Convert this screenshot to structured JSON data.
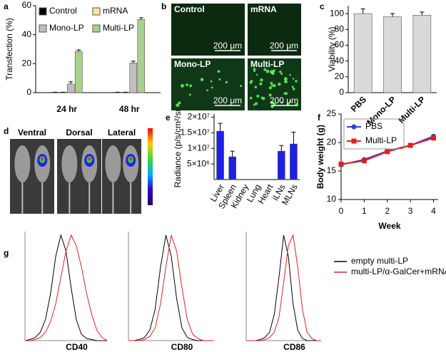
{
  "chart_data": [
    {
      "type": "bar",
      "panel": "a",
      "ylabel": "Transfection (%)",
      "categories": [
        "24 hr",
        "48 hr"
      ],
      "series": [
        {
          "name": "Control",
          "color": "#000000",
          "values": [
            0.3,
            0.3
          ],
          "errors": [
            0,
            0
          ]
        },
        {
          "name": "mRNA",
          "color": "#ffe699",
          "values": [
            0.3,
            0.3
          ],
          "errors": [
            0,
            0
          ]
        },
        {
          "name": "Mono-LP",
          "color": "#bfbfbf",
          "values": [
            6,
            20.5
          ],
          "errors": [
            1.5,
            1.2
          ]
        },
        {
          "name": "Multi-LP",
          "color": "#a9d18e",
          "values": [
            28.5,
            50.5
          ],
          "errors": [
            1,
            1.2
          ]
        }
      ],
      "ylim": [
        0,
        60
      ],
      "yticks": [
        0,
        20,
        40,
        60
      ]
    },
    {
      "type": "bar",
      "panel": "c",
      "ylabel": "Viability (%)",
      "categories": [
        "PBS",
        "Mono-LP",
        "Multi-LP"
      ],
      "series": [
        {
          "color": "#d9d9d9",
          "values": [
            100,
            96,
            98
          ],
          "errors": [
            6,
            4,
            4
          ]
        }
      ],
      "ylim": [
        0,
        110
      ],
      "yticks": [
        0,
        20,
        40,
        60,
        80,
        100
      ]
    },
    {
      "type": "bar",
      "panel": "e",
      "ylabel": "Radiance (p/s/cm²/sr)",
      "categories": [
        "Liver",
        "Spleen",
        "Kidney",
        "Lung",
        "Heart",
        "iLNs",
        "MLNs"
      ],
      "series": [
        {
          "color": "#1f1fe6",
          "values": [
            15500000,
            7300000,
            0,
            0,
            0,
            9100000,
            11400000
          ],
          "errors": [
            2500000,
            1800000,
            0,
            0,
            0,
            1800000,
            3800000
          ]
        }
      ],
      "ylim": [
        0,
        21000000
      ],
      "yticks": [
        {
          "value": 5000000,
          "label": "5×10⁶"
        },
        {
          "value": 10000000,
          "label": "1×10⁷"
        },
        {
          "value": 15000000,
          "label": "1.5×10⁷"
        },
        {
          "value": 20000000,
          "label": "2×10⁷"
        }
      ]
    },
    {
      "type": "line",
      "panel": "f",
      "xlabel": "Week",
      "ylabel": "Body weight (g)",
      "x": [
        0,
        1,
        2,
        3,
        4
      ],
      "series": [
        {
          "name": "PBS",
          "color": "#2c3fd6",
          "values": [
            16.1,
            17.0,
            18.5,
            19.5,
            21.1
          ],
          "errors": [
            0.3,
            0.3,
            0.3,
            0.3,
            0.4
          ]
        },
        {
          "name": "Multi-LP",
          "color": "#e02020",
          "values": [
            16.2,
            16.8,
            18.4,
            19.5,
            20.8
          ],
          "errors": [
            0.3,
            0.3,
            0.3,
            0.3,
            0.5
          ]
        }
      ],
      "xlim": [
        0,
        4.2
      ],
      "xticks": [
        0,
        1,
        2,
        3,
        4
      ],
      "ylim": [
        10,
        25
      ],
      "yticks": [
        10,
        15,
        20,
        25
      ]
    },
    {
      "type": "flow",
      "panel": "g",
      "x": [
        0,
        1,
        2,
        3,
        4,
        5,
        6,
        7,
        8,
        9,
        10,
        11,
        12,
        13,
        14,
        15,
        16
      ],
      "xlim": [
        0,
        16
      ],
      "ylim": [
        0,
        100
      ],
      "series": [
        {
          "name": "empty multi-LP",
          "color": "#000000"
        },
        {
          "name": "multi-LP/α-GalCer+mRNA",
          "color": "#e02020"
        }
      ],
      "plots": [
        {
          "xlabel": "CD40",
          "values": [
            [
              0,
              1,
              3,
              8,
              20,
              45,
              80,
              100,
              85,
              50,
              20,
              6,
              2,
              1,
              0,
              0,
              0
            ],
            [
              0,
              0,
              1,
              3,
              8,
              18,
              35,
              60,
              85,
              100,
              90,
              70,
              45,
              25,
              10,
              3,
              0
            ]
          ]
        },
        {
          "xlabel": "CD80",
          "values": [
            [
              0,
              0,
              1,
              3,
              10,
              30,
              70,
              100,
              80,
              40,
              12,
              3,
              1,
              0,
              0,
              0,
              0
            ],
            [
              0,
              0,
              0,
              1,
              4,
              12,
              35,
              70,
              100,
              85,
              50,
              20,
              6,
              2,
              0,
              0,
              0
            ]
          ]
        },
        {
          "xlabel": "CD86",
          "values": [
            [
              0,
              0,
              0,
              1,
              3,
              8,
              25,
              60,
              100,
              80,
              35,
              10,
              2,
              0,
              0,
              0,
              0
            ],
            [
              0,
              0,
              0,
              0,
              1,
              3,
              8,
              22,
              55,
              90,
              100,
              70,
              30,
              8,
              2,
              0,
              0
            ]
          ]
        }
      ]
    }
  ],
  "images": {
    "b": {
      "panel": "b",
      "tiles": [
        {
          "label": "Control",
          "scale": "200 μm"
        },
        {
          "label": "mRNA",
          "scale": "200 μm"
        },
        {
          "label": "Mono-LP",
          "scale": "200 μm"
        },
        {
          "label": "Multi-LP",
          "scale": "200 μm"
        }
      ]
    },
    "d": {
      "panel": "d",
      "views": [
        "Ventral",
        "Dorsal",
        "Lateral"
      ]
    }
  }
}
